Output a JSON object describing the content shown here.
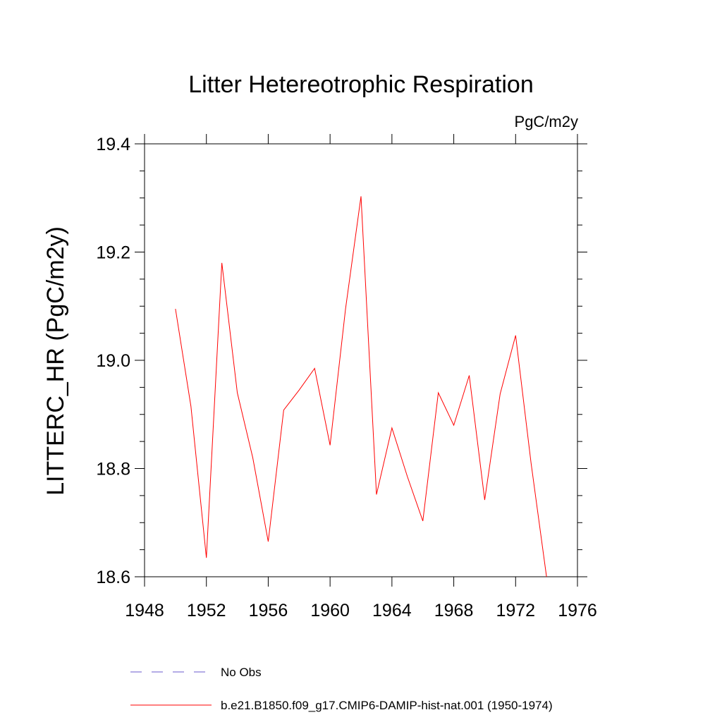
{
  "chart_data": {
    "type": "line",
    "title": "Litter Hetereotrophic Respiration",
    "units_label": "PgC/m2y",
    "xlabel": "",
    "ylabel": "LITTERC_HR  (PgC/m2y)",
    "xlim": [
      1948,
      1976
    ],
    "ylim": [
      18.6,
      19.4
    ],
    "xticks": [
      1948,
      1952,
      1956,
      1960,
      1964,
      1968,
      1972,
      1976
    ],
    "xtick_labels": [
      "1948",
      "1952",
      "1956",
      "1960",
      "1964",
      "1968",
      "1972",
      "1976"
    ],
    "yticks": [
      18.6,
      18.8,
      19.0,
      19.2,
      19.4
    ],
    "ytick_labels": [
      "18.6",
      "18.8",
      "19.0",
      "19.2",
      "19.4"
    ],
    "grid": false,
    "legend_position": "bottom",
    "series": [
      {
        "name": "No Obs",
        "color": "#6a5acd",
        "dash": "dashed",
        "x": [],
        "y": []
      },
      {
        "name": "b.e21.B1850.f09_g17.CMIP6-DAMIP-hist-nat.001 (1950-1974)",
        "color": "#ff0000",
        "dash": "solid",
        "x": [
          1950,
          1951,
          1952,
          1953,
          1954,
          1955,
          1956,
          1957,
          1958,
          1959,
          1960,
          1961,
          1962,
          1963,
          1964,
          1965,
          1966,
          1967,
          1968,
          1969,
          1970,
          1971,
          1972,
          1973,
          1974
        ],
        "y": [
          19.095,
          18.915,
          18.635,
          19.18,
          18.94,
          18.82,
          18.665,
          18.908,
          18.945,
          18.985,
          18.843,
          19.095,
          19.303,
          18.752,
          18.875,
          18.785,
          18.703,
          18.94,
          18.88,
          18.972,
          18.742,
          18.938,
          19.046,
          18.81,
          18.6
        ]
      }
    ]
  }
}
